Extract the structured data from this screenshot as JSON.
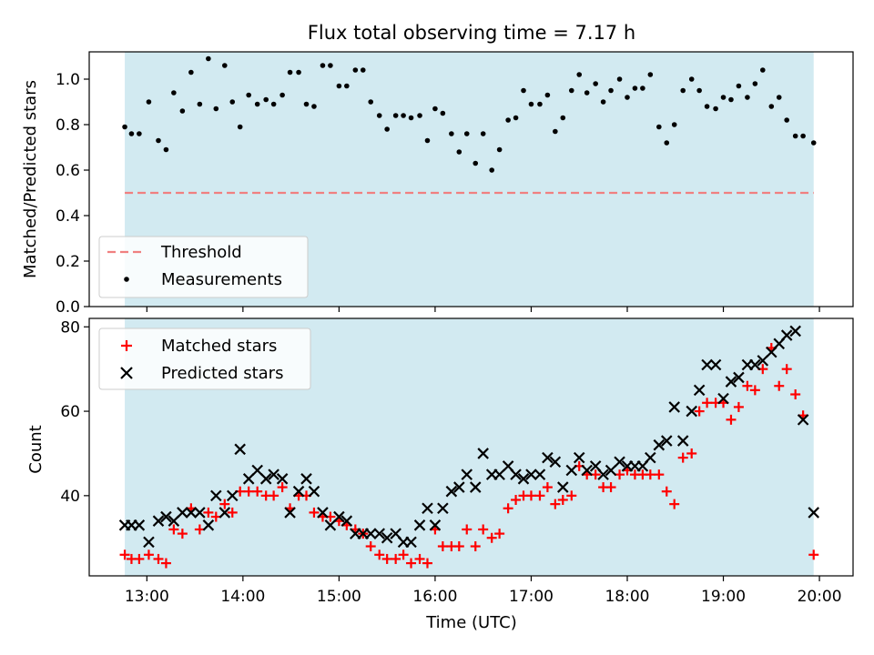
{
  "chart_data": [
    {
      "type": "scatter",
      "title": "Flux total observing time = 7.17 h",
      "ylabel": "Matched/Predicted stars",
      "ylim": [
        0.0,
        1.12
      ],
      "xlim": [
        12.4,
        20.35
      ],
      "yticks": [
        0.0,
        0.2,
        0.4,
        0.6,
        0.8,
        1.0
      ],
      "ytick_labels": [
        "0.0",
        "0.2",
        "0.4",
        "0.6",
        "0.8",
        "1.0"
      ],
      "xticks": [
        13,
        14,
        15,
        16,
        17,
        18,
        19,
        20
      ],
      "shaded_span": [
        12.77,
        19.94
      ],
      "threshold": {
        "name": "Threshold",
        "y": 0.5,
        "x": [
          12.77,
          19.94
        ],
        "color": "#f08080"
      },
      "legend": {
        "loc": "lower left",
        "entries": [
          "Threshold",
          "Measurements"
        ]
      },
      "series": [
        {
          "name": "Measurements",
          "marker": "dot",
          "color": "#000000",
          "x": [
            12.77,
            12.84,
            12.92,
            13.02,
            13.12,
            13.2,
            13.28,
            13.37,
            13.46,
            13.55,
            13.64,
            13.72,
            13.81,
            13.89,
            13.97,
            14.06,
            14.15,
            14.24,
            14.32,
            14.41,
            14.49,
            14.58,
            14.66,
            14.74,
            14.83,
            14.91,
            15.0,
            15.08,
            15.17,
            15.25,
            15.33,
            15.42,
            15.5,
            15.59,
            15.67,
            15.75,
            15.84,
            15.92,
            16.0,
            16.08,
            16.17,
            16.25,
            16.33,
            16.42,
            16.5,
            16.59,
            16.67,
            16.76,
            16.84,
            16.92,
            17.0,
            17.09,
            17.17,
            17.25,
            17.33,
            17.42,
            17.5,
            17.58,
            17.67,
            17.75,
            17.83,
            17.92,
            18.0,
            18.08,
            18.16,
            18.24,
            18.33,
            18.41,
            18.49,
            18.58,
            18.67,
            18.75,
            18.83,
            18.92,
            19.0,
            19.08,
            19.16,
            19.25,
            19.33,
            19.41,
            19.5,
            19.58,
            19.66,
            19.75,
            19.83,
            19.94
          ],
          "y": [
            0.79,
            0.76,
            0.76,
            0.9,
            0.73,
            0.69,
            0.94,
            0.86,
            1.03,
            0.89,
            1.09,
            0.87,
            1.06,
            0.9,
            0.79,
            0.93,
            0.89,
            0.91,
            0.89,
            0.93,
            1.03,
            1.03,
            0.89,
            0.88,
            1.06,
            1.06,
            0.97,
            0.97,
            1.04,
            1.04,
            0.9,
            0.84,
            0.78,
            0.84,
            0.84,
            0.83,
            0.84,
            0.73,
            0.87,
            0.85,
            0.76,
            0.68,
            0.76,
            0.63,
            0.76,
            0.6,
            0.69,
            0.82,
            0.83,
            0.95,
            0.89,
            0.89,
            0.93,
            0.77,
            0.83,
            0.95,
            1.02,
            0.94,
            0.98,
            0.9,
            0.95,
            1.0,
            0.92,
            0.96,
            0.96,
            1.02,
            0.79,
            0.72,
            0.8,
            0.95,
            1.0,
            0.95,
            0.88,
            0.87,
            0.92,
            0.91,
            0.97,
            0.92,
            0.98,
            1.04,
            0.88,
            0.92,
            0.82,
            0.75,
            0.75,
            0.72
          ]
        }
      ]
    },
    {
      "type": "scatter",
      "xlabel": "Time (UTC)",
      "ylabel": "Count",
      "ylim": [
        21,
        82
      ],
      "xlim": [
        12.4,
        20.35
      ],
      "yticks": [
        40,
        60,
        80
      ],
      "ytick_labels": [
        "40",
        "60",
        "80"
      ],
      "xticks": [
        13,
        14,
        15,
        16,
        17,
        18,
        19,
        20
      ],
      "xtick_labels": [
        "13:00",
        "14:00",
        "15:00",
        "16:00",
        "17:00",
        "18:00",
        "19:00",
        "20:00"
      ],
      "shaded_span": [
        12.77,
        19.94
      ],
      "legend": {
        "loc": "upper left",
        "entries": [
          "Matched stars",
          "Predicted stars"
        ]
      },
      "series": [
        {
          "name": "Matched stars",
          "marker": "plus",
          "color": "#ff0000",
          "x": [
            12.77,
            12.84,
            12.92,
            13.02,
            13.12,
            13.2,
            13.28,
            13.37,
            13.46,
            13.55,
            13.64,
            13.72,
            13.81,
            13.89,
            13.97,
            14.06,
            14.15,
            14.24,
            14.32,
            14.41,
            14.49,
            14.58,
            14.66,
            14.74,
            14.83,
            14.91,
            15.0,
            15.08,
            15.17,
            15.25,
            15.33,
            15.42,
            15.5,
            15.59,
            15.67,
            15.75,
            15.84,
            15.92,
            16.0,
            16.08,
            16.17,
            16.25,
            16.33,
            16.42,
            16.5,
            16.59,
            16.67,
            16.76,
            16.84,
            16.92,
            17.0,
            17.09,
            17.17,
            17.25,
            17.33,
            17.42,
            17.5,
            17.58,
            17.67,
            17.75,
            17.83,
            17.92,
            18.0,
            18.08,
            18.16,
            18.24,
            18.33,
            18.41,
            18.49,
            18.58,
            18.67,
            18.75,
            18.83,
            18.92,
            19.0,
            19.08,
            19.16,
            19.25,
            19.33,
            19.41,
            19.5,
            19.58,
            19.66,
            19.75,
            19.83,
            19.94
          ],
          "y": [
            26,
            25,
            25,
            26,
            25,
            24,
            32,
            31,
            37,
            32,
            36,
            35,
            38,
            36,
            41,
            41,
            41,
            40,
            40,
            42,
            37,
            40,
            40,
            36,
            35,
            35,
            34,
            33,
            32,
            31,
            28,
            26,
            25,
            25,
            26,
            24,
            25,
            24,
            32,
            28,
            28,
            28,
            32,
            28,
            32,
            30,
            31,
            37,
            39,
            40,
            40,
            40,
            42,
            38,
            39,
            40,
            47,
            45,
            45,
            42,
            42,
            45,
            46,
            45,
            45,
            45,
            45,
            41,
            38,
            49,
            50,
            60,
            62,
            62,
            62,
            58,
            61,
            66,
            65,
            70,
            75,
            66,
            70,
            64,
            59,
            26
          ]
        },
        {
          "name": "Predicted stars",
          "marker": "x",
          "color": "#000000",
          "x": [
            12.77,
            12.84,
            12.92,
            13.02,
            13.12,
            13.2,
            13.28,
            13.37,
            13.46,
            13.55,
            13.64,
            13.72,
            13.81,
            13.89,
            13.97,
            14.06,
            14.15,
            14.24,
            14.32,
            14.41,
            14.49,
            14.58,
            14.66,
            14.74,
            14.83,
            14.91,
            15.0,
            15.08,
            15.17,
            15.25,
            15.33,
            15.42,
            15.5,
            15.59,
            15.67,
            15.75,
            15.84,
            15.92,
            16.0,
            16.08,
            16.17,
            16.25,
            16.33,
            16.42,
            16.5,
            16.59,
            16.67,
            16.76,
            16.84,
            16.92,
            17.0,
            17.09,
            17.17,
            17.25,
            17.33,
            17.42,
            17.5,
            17.58,
            17.67,
            17.75,
            17.83,
            17.92,
            18.0,
            18.08,
            18.16,
            18.24,
            18.33,
            18.41,
            18.49,
            18.58,
            18.67,
            18.75,
            18.83,
            18.92,
            19.0,
            19.08,
            19.16,
            19.25,
            19.33,
            19.41,
            19.5,
            19.58,
            19.66,
            19.75,
            19.83,
            19.94
          ],
          "y": [
            33,
            33,
            33,
            29,
            34,
            35,
            34,
            36,
            36,
            36,
            33,
            40,
            36,
            40,
            51,
            44,
            46,
            44,
            45,
            44,
            36,
            41,
            44,
            41,
            36,
            33,
            35,
            34,
            31,
            31,
            31,
            31,
            30,
            31,
            29,
            29,
            33,
            37,
            33,
            37,
            41,
            42,
            45,
            42,
            50,
            45,
            45,
            47,
            45,
            44,
            45,
            45,
            49,
            48,
            42,
            46,
            49,
            46,
            47,
            45,
            46,
            48,
            47,
            47,
            47,
            49,
            52,
            53,
            61,
            53,
            60,
            65,
            71,
            71,
            63,
            67,
            68,
            71,
            71,
            72,
            74,
            76,
            78,
            79,
            58,
            36
          ]
        }
      ]
    }
  ]
}
